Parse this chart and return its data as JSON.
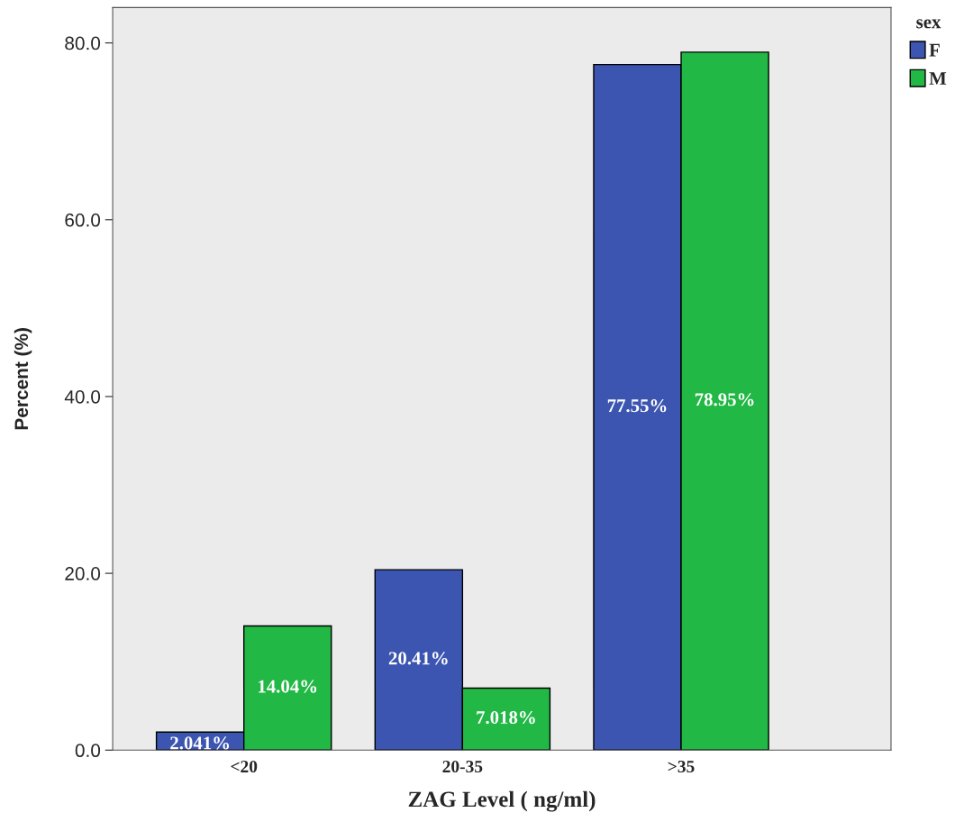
{
  "chart_data": {
    "type": "bar",
    "xlabel": "ZAG Level ( ng/ml)",
    "ylabel": "Percent (%)",
    "legend_title": "sex",
    "categories": [
      "<20",
      "20-35",
      ">35"
    ],
    "series": [
      {
        "name": "F",
        "color": "#3b55b0",
        "values": [
          2.041,
          20.41,
          77.55
        ],
        "value_labels": [
          "2.041%",
          "20.41%",
          "77.55%"
        ]
      },
      {
        "name": "M",
        "color": "#22b845",
        "values": [
          14.04,
          7.018,
          78.95
        ],
        "value_labels": [
          "14.04%",
          "7.018%",
          "78.95%"
        ]
      }
    ],
    "ylim": [
      0,
      84
    ],
    "yticks": [
      {
        "value": 0,
        "label": "0.0"
      },
      {
        "value": 20,
        "label": "20.0"
      },
      {
        "value": 40,
        "label": "40.0"
      },
      {
        "value": 60,
        "label": "60.0"
      },
      {
        "value": 80,
        "label": "80.0"
      }
    ],
    "grid": false,
    "legend": "top right"
  }
}
